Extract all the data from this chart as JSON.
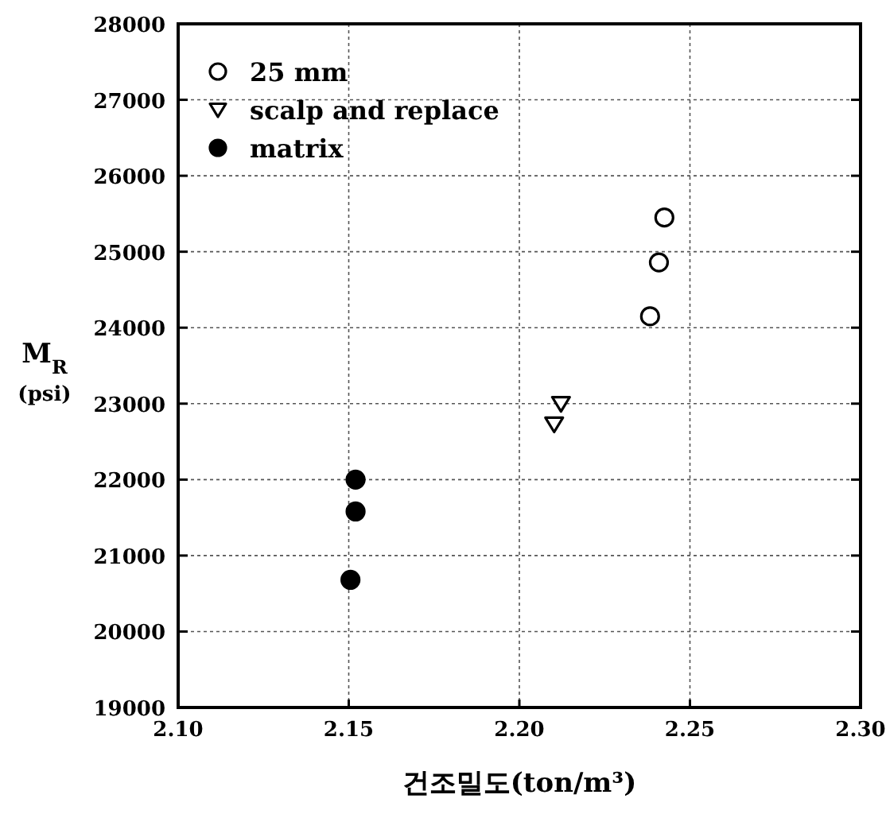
{
  "chart_data": {
    "type": "scatter",
    "xlabel": "건조밀도(ton/m³)",
    "ylabel": "M$_{R}$\n(psi)",
    "xlim": [
      2.1,
      2.3
    ],
    "xticks": [
      {
        "value": 2.1,
        "label": "2.10"
      },
      {
        "value": 2.15,
        "label": "2.15"
      },
      {
        "value": 2.2,
        "label": "2.20"
      },
      {
        "value": 2.25,
        "label": "2.25"
      },
      {
        "value": 2.3,
        "label": "2.30"
      }
    ],
    "ylim": [
      19000,
      28000
    ],
    "yticks": [
      19000,
      20000,
      21000,
      22000,
      23000,
      24000,
      25000,
      26000,
      27000,
      28000
    ],
    "grid": true,
    "legend": "top left",
    "series": [
      {
        "name": "25 mm",
        "color": "#ffffff",
        "marker": "circle",
        "x": [
          2.2425,
          2.2409,
          2.2383
        ],
        "values": [
          25450,
          24860,
          24150
        ]
      },
      {
        "name": "scalp and replace",
        "color": "#ffffff",
        "marker": "triangle",
        "x": [
          2.2122,
          2.2102
        ],
        "values": [
          23000,
          22730
        ]
      },
      {
        "name": "matrix",
        "color": "#000000",
        "marker": "circle",
        "x": [
          2.152,
          2.152,
          2.1505
        ],
        "values": [
          22000,
          21580,
          20680
        ]
      }
    ]
  }
}
